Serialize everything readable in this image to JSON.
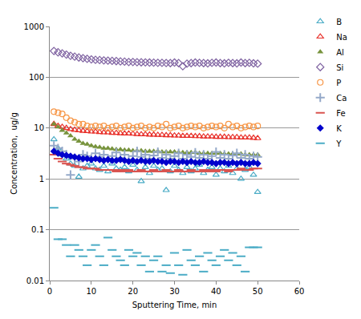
{
  "chart_data": {
    "type": "scatter",
    "x_label": "Sputtering Time, min",
    "y_label": "Concentration,  ug/g",
    "log": "y",
    "grid": "y",
    "legend": "right",
    "xlim": [
      0,
      60
    ],
    "xticks": [
      0,
      10,
      20,
      30,
      40,
      50,
      60
    ],
    "ylim": [
      0.01,
      1000
    ],
    "yticks": [
      0.01,
      0.1,
      1,
      10,
      100,
      1000
    ],
    "x": [
      1,
      2,
      3,
      4,
      5,
      6,
      7,
      8,
      9,
      10,
      11,
      12,
      13,
      14,
      15,
      16,
      17,
      18,
      19,
      20,
      21,
      22,
      23,
      24,
      25,
      26,
      27,
      28,
      29,
      30,
      31,
      32,
      33,
      34,
      35,
      36,
      37,
      38,
      39,
      40,
      41,
      42,
      43,
      44,
      45,
      46,
      47,
      48,
      49,
      50
    ],
    "series": [
      {
        "name": "B",
        "color": "#4bacc6",
        "marker": "triangle-up-open",
        "values": [
          6,
          4,
          3,
          2.5,
          2,
          1.8,
          1.1,
          1.6,
          1.8,
          2,
          1.6,
          1.5,
          1.8,
          1.4,
          2,
          1.6,
          1.5,
          1.7,
          1.4,
          1.9,
          1.5,
          0.9,
          1.7,
          1.3,
          1.8,
          1.5,
          1.6,
          0.6,
          1.4,
          1.8,
          1.5,
          1.3,
          1.7,
          1.4,
          1.6,
          1.9,
          1.3,
          1.5,
          1.7,
          1.2,
          1.6,
          1.4,
          1.8,
          1.3,
          1.6,
          1.0,
          1.5,
          1.7,
          1.2,
          0.55
        ]
      },
      {
        "name": "Na",
        "color": "#e8302a",
        "marker": "triangle-up-open",
        "values": [
          12,
          11,
          10.5,
          10,
          9.5,
          9.2,
          9,
          8.8,
          8.7,
          8.5,
          8.5,
          8.3,
          8.2,
          8.2,
          8,
          8,
          7.9,
          7.8,
          7.8,
          7.7,
          7.6,
          7.5,
          7.5,
          7.4,
          7.4,
          7.3,
          7.3,
          7.2,
          7.2,
          7.1,
          7.1,
          7,
          7,
          7,
          6.9,
          6.9,
          6.8,
          6.8,
          6.8,
          6.7,
          6.7,
          6.7,
          6.6,
          6.6,
          6.6,
          6.5,
          6.5,
          6.5,
          6.4,
          6.3
        ]
      },
      {
        "name": "Al",
        "color": "#77933c",
        "marker": "triangle-up",
        "values": [
          12,
          10.5,
          9,
          8,
          7,
          6,
          5.5,
          5,
          4.8,
          4.5,
          4.3,
          4.2,
          4,
          4,
          3.9,
          3.8,
          3.8,
          3.7,
          3.7,
          3.6,
          3.6,
          3.6,
          3.5,
          3.5,
          3.5,
          3.5,
          3.4,
          3.4,
          3.4,
          3.4,
          3.3,
          3.3,
          3.3,
          3.3,
          3.3,
          3.2,
          3.2,
          3.2,
          3.2,
          3.2,
          3.2,
          3.1,
          3.1,
          3.1,
          3.1,
          3.1,
          3,
          3,
          3,
          3
        ]
      },
      {
        "name": "Si",
        "color": "#8064a2",
        "marker": "diamond-open",
        "values": [
          330,
          310,
          295,
          280,
          265,
          255,
          245,
          238,
          230,
          225,
          220,
          218,
          215,
          212,
          210,
          208,
          205,
          203,
          200,
          200,
          198,
          197,
          196,
          195,
          194,
          193,
          192,
          191,
          190,
          195,
          190,
          165,
          185,
          190,
          195,
          192,
          190,
          188,
          192,
          195,
          190,
          188,
          193,
          190,
          188,
          195,
          190,
          192,
          188,
          185
        ]
      },
      {
        "name": "P",
        "color": "#f79646",
        "marker": "circle-open",
        "values": [
          21,
          20,
          19,
          16,
          14,
          13,
          12,
          12,
          11,
          10.5,
          11,
          10.5,
          11,
          10,
          10.5,
          11,
          10,
          10.5,
          11,
          10,
          10.5,
          11,
          10,
          10.5,
          10,
          11,
          10.5,
          12,
          10,
          10.5,
          11,
          10,
          10.5,
          11,
          10.5,
          11,
          10,
          10.5,
          11,
          10.5,
          11,
          10,
          12,
          10.5,
          11,
          10,
          10.5,
          11,
          10.5,
          11
        ]
      },
      {
        "name": "Ca",
        "color": "#95a9c9",
        "marker": "cross-thin-open",
        "values": [
          4.5,
          4,
          3.5,
          3,
          1.2,
          2.5,
          2.2,
          3,
          2.8,
          2.5,
          3.2,
          2.7,
          3,
          2.5,
          2.8,
          3.3,
          2.6,
          3,
          2.4,
          2.8,
          3.5,
          2.7,
          3,
          2.5,
          2.9,
          3.4,
          2.6,
          3,
          2.5,
          2.8,
          3.2,
          2.5,
          3,
          2.7,
          3.3,
          2.6,
          3,
          2.5,
          2.8,
          3.4,
          2.6,
          3,
          2.5,
          2.9,
          3.2,
          2.6,
          3,
          2.5,
          2.8,
          2.7
        ]
      },
      {
        "name": "Fe",
        "color": "#d9534f",
        "marker": "line-ew-open",
        "values": [
          3,
          2.5,
          2.2,
          2,
          1.9,
          1.8,
          1.7,
          1.7,
          1.6,
          1.6,
          1.6,
          1.5,
          1.5,
          1.5,
          1.5,
          1.4,
          1.5,
          1.4,
          1.5,
          1.4,
          1.4,
          1.5,
          1.4,
          1.4,
          1.5,
          1.4,
          1.4,
          1.5,
          1.4,
          1.4,
          1.5,
          1.4,
          1.4,
          1.5,
          1.4,
          1.4,
          1.5,
          1.4,
          1.5,
          1.4,
          1.5,
          1.5,
          1.4,
          1.5,
          1.5,
          1.6,
          1.5,
          1.5,
          1.6,
          1.6
        ]
      },
      {
        "name": "K",
        "color": "#0000cc",
        "marker": "diamond",
        "values": [
          3.5,
          3.2,
          3,
          2.9,
          2.8,
          2.7,
          2.6,
          2.5,
          2.5,
          2.4,
          2.5,
          2.4,
          2.3,
          2.4,
          2.3,
          2.3,
          2.4,
          2.3,
          2.2,
          2.3,
          2.2,
          2.3,
          2.2,
          2.2,
          2.3,
          2.2,
          2.2,
          2.1,
          2.2,
          2.2,
          2.1,
          2.2,
          2.1,
          2.2,
          2.1,
          2.1,
          2.2,
          2.1,
          2.1,
          2.0,
          2.1,
          2.1,
          2.0,
          2.1,
          2.0,
          2.1,
          2.0,
          2.0,
          2.1,
          2.0
        ]
      },
      {
        "name": "Y",
        "color": "#4bacc6",
        "marker": "line-ew-open",
        "values": [
          0.27,
          0.065,
          0.065,
          0.05,
          0.03,
          0.05,
          0.04,
          0.03,
          0.02,
          0.04,
          0.05,
          0.03,
          0.02,
          0.07,
          0.04,
          0.03,
          0.025,
          0.02,
          0.04,
          0.03,
          0.035,
          0.02,
          0.03,
          0.015,
          0.025,
          0.03,
          0.015,
          0.02,
          0.014,
          0.035,
          0.02,
          0.013,
          0.04,
          0.025,
          0.02,
          0.03,
          0.015,
          0.035,
          0.025,
          0.02,
          0.03,
          0.04,
          0.025,
          0.035,
          0.02,
          0.03,
          0.015,
          0.045,
          0.045,
          0.045
        ]
      }
    ]
  }
}
